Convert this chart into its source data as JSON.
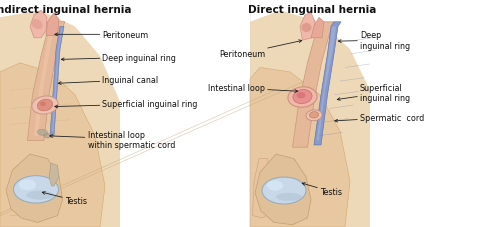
{
  "fig_width": 5.0,
  "fig_height": 2.28,
  "dpi": 100,
  "bg_color": "#ffffff",
  "panel_bg": "#f5ede0",
  "left_title": "Indirect inguinal hernia",
  "right_title": "Direct inguinal hernia",
  "skin_light": "#f0d8b8",
  "skin_mid": "#e8c8a0",
  "skin_dark": "#d4a878",
  "flesh_pink": "#e8b0a0",
  "flesh_deep": "#d08878",
  "blue_cord": "#8899cc",
  "blue_light": "#aabbdd",
  "testis_blue": "#c8d8e8",
  "testis_light": "#ddeeff",
  "title_fontsize": 7.5,
  "label_fontsize": 5.8,
  "annot_left": [
    {
      "text": "Peritoneum",
      "txy": [
        0.205,
        0.845
      ],
      "axy": [
        0.105,
        0.845
      ],
      "ha": "left"
    },
    {
      "text": "Deep inguinal ring",
      "txy": [
        0.205,
        0.745
      ],
      "axy": [
        0.118,
        0.735
      ],
      "ha": "left"
    },
    {
      "text": "Inguinal canal",
      "txy": [
        0.205,
        0.645
      ],
      "axy": [
        0.112,
        0.63
      ],
      "ha": "left"
    },
    {
      "text": "Superficial inguinal ring",
      "txy": [
        0.205,
        0.54
      ],
      "axy": [
        0.105,
        0.528
      ],
      "ha": "left"
    },
    {
      "text": "Intestinal loop\nwithin spermatic cord",
      "txy": [
        0.175,
        0.385
      ],
      "axy": [
        0.095,
        0.4
      ],
      "ha": "left"
    },
    {
      "text": "Testis",
      "txy": [
        0.13,
        0.115
      ],
      "axy": [
        0.08,
        0.155
      ],
      "ha": "left"
    }
  ],
  "annot_right": [
    {
      "text": "Peritoneum",
      "txy": [
        0.53,
        0.76
      ],
      "axy": [
        0.608,
        0.82
      ],
      "ha": "left"
    },
    {
      "text": "Deep\ninguinal ring",
      "txy": [
        0.72,
        0.82
      ],
      "axy": [
        0.672,
        0.815
      ],
      "ha": "left"
    },
    {
      "text": "Intestinal loop",
      "txy": [
        0.53,
        0.61
      ],
      "axy": [
        0.6,
        0.595
      ],
      "ha": "left"
    },
    {
      "text": "Superficial\ninguinal ring",
      "txy": [
        0.72,
        0.59
      ],
      "axy": [
        0.67,
        0.558
      ],
      "ha": "left"
    },
    {
      "text": "Spermatic  cord",
      "txy": [
        0.72,
        0.48
      ],
      "axy": [
        0.665,
        0.465
      ],
      "ha": "left"
    },
    {
      "text": "Testis",
      "txy": [
        0.64,
        0.155
      ],
      "axy": [
        0.6,
        0.195
      ],
      "ha": "left"
    }
  ]
}
